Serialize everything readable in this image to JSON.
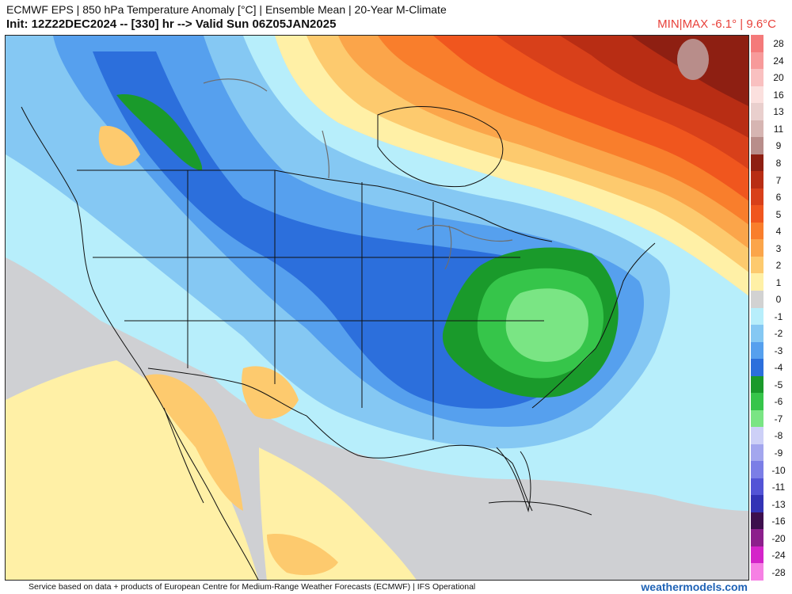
{
  "header": {
    "title": "ECMWF EPS | 850 hPa Temperature Anomaly [°C] | Ensemble Mean | 20-Year M-Climate",
    "init_line": "Init: 12Z22DEC2024 -- [330] hr --> Valid Sun 06Z05JAN2025",
    "minmax": "MIN|MAX -6.1° | 9.6°C"
  },
  "colorbar": {
    "levels": [
      {
        "label": "28",
        "color": "#f47a7a"
      },
      {
        "label": "24",
        "color": "#f79a9a"
      },
      {
        "label": "20",
        "color": "#f9c0c0"
      },
      {
        "label": "16",
        "color": "#fbe0de"
      },
      {
        "label": "13",
        "color": "#e9cfcd"
      },
      {
        "label": "11",
        "color": "#d6b5b2"
      },
      {
        "label": "9",
        "color": "#b88d8a"
      },
      {
        "label": "8",
        "color": "#8e1f12"
      },
      {
        "label": "7",
        "color": "#b82d14"
      },
      {
        "label": "6",
        "color": "#d8401a"
      },
      {
        "label": "5",
        "color": "#f0561e"
      },
      {
        "label": "4",
        "color": "#f97e2c"
      },
      {
        "label": "3",
        "color": "#fba54a"
      },
      {
        "label": "2",
        "color": "#fdca6e"
      },
      {
        "label": "1",
        "color": "#fff0a6"
      },
      {
        "label": "0",
        "color": "#d2d2d2"
      },
      {
        "label": "-1",
        "color": "#b7eefb"
      },
      {
        "label": "-2",
        "color": "#85c8f3"
      },
      {
        "label": "-3",
        "color": "#56a0ee"
      },
      {
        "label": "-4",
        "color": "#2c6fdc"
      },
      {
        "label": "-5",
        "color": "#1a9a2b"
      },
      {
        "label": "-6",
        "color": "#36c54a"
      },
      {
        "label": "-7",
        "color": "#7ae584"
      },
      {
        "label": "-8",
        "color": "#cdd0f7"
      },
      {
        "label": "-9",
        "color": "#a3a6ee"
      },
      {
        "label": "-10",
        "color": "#7b7ee6"
      },
      {
        "label": "-11",
        "color": "#5354d6"
      },
      {
        "label": "-13",
        "color": "#3333b5"
      },
      {
        "label": "-16",
        "color": "#3d0f4d"
      },
      {
        "label": "-20",
        "color": "#8c1f8c"
      },
      {
        "label": "-24",
        "color": "#d424c9"
      },
      {
        "label": "-28",
        "color": "#f680e4"
      }
    ]
  },
  "map_colors": {
    "land_neutral": "#cfd0d3",
    "warm_1": "#fff0a6",
    "warm_2": "#fdca6e",
    "warm_3": "#fba54a",
    "warm_4": "#f97e2c",
    "warm_5": "#f0561e",
    "warm_6": "#d8401a",
    "warm_7": "#b82d14",
    "warm_8": "#8e1f12",
    "warm_9": "#b88d8a",
    "cold_1": "#b7eefb",
    "cold_2": "#85c8f3",
    "cold_3": "#56a0ee",
    "cold_4": "#2c6fdc",
    "cold_5": "#1a9a2b",
    "cold_6": "#36c54a",
    "cold_7": "#7ae584",
    "borders": "#111111",
    "lakes": "#6e6e6e"
  },
  "footer": {
    "credit": "Service based on data + products of European Centre for Medium-Range Weather Forecasts (ECMWF) | IFS Operational",
    "site": "weathermodels.com"
  }
}
